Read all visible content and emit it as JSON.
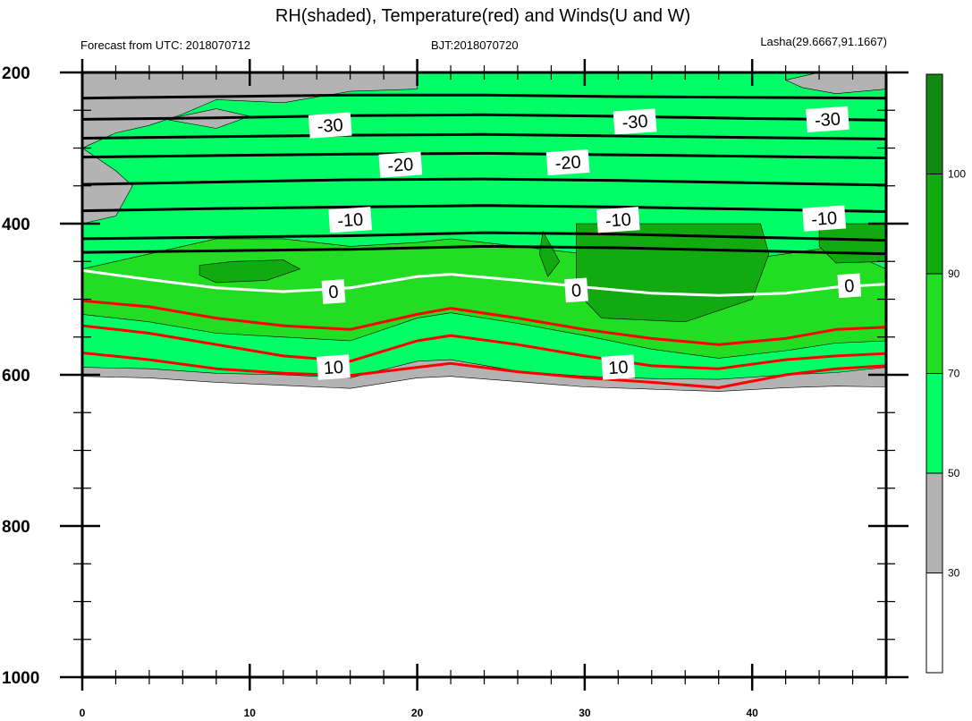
{
  "title": "RH(shaded), Temperature(red) and Winds(U and W)",
  "subtitle_left": "Forecast from UTC: 2018070712",
  "subtitle_center": "BJT:2018070720",
  "subtitle_right": "Lasha(29.6667,91.1667)",
  "colors": {
    "rh_below_30": "#ffffff",
    "rh_30_50": "#b3b3b3",
    "rh_50_70": "#00ff66",
    "rh_70_90": "#22dd22",
    "rh_90_100": "#11aa11",
    "rh_above_100": "#118811",
    "isotherm_cold": "#000000",
    "isotherm_zero": "#ffffff",
    "isotherm_warm": "#ff0000"
  },
  "chart_data": {
    "type": "heatmap",
    "x_label": "",
    "y_label": "",
    "x_ticks": [
      "0",
      "10",
      "20",
      "30",
      "40"
    ],
    "y_ticks": [
      "200",
      "400",
      "600",
      "800",
      "1000"
    ],
    "xlim": [
      0,
      48
    ],
    "ylim": [
      200,
      1000
    ],
    "y_inverted": true,
    "colorbar": {
      "labels": [
        "30",
        "50",
        "70",
        "90",
        "100"
      ],
      "levels": [
        30,
        50,
        70,
        90,
        100
      ]
    },
    "ground_pressure": [
      [
        0,
        602
      ],
      [
        4,
        604
      ],
      [
        8,
        610
      ],
      [
        12,
        614
      ],
      [
        16,
        618
      ],
      [
        20,
        604
      ],
      [
        22,
        602
      ],
      [
        26,
        609
      ],
      [
        30,
        616
      ],
      [
        34,
        619
      ],
      [
        38,
        622
      ],
      [
        42,
        617
      ],
      [
        45,
        615
      ],
      [
        48,
        616
      ]
    ],
    "rh_bands": [
      {
        "name": "rh_30_50",
        "top": [
          [
            0,
            590
          ],
          [
            4,
            592
          ],
          [
            8,
            598
          ],
          [
            12,
            600
          ],
          [
            16,
            604
          ],
          [
            20,
            582
          ],
          [
            22,
            580
          ],
          [
            26,
            595
          ],
          [
            30,
            602
          ],
          [
            34,
            605
          ],
          [
            38,
            606
          ],
          [
            42,
            600
          ],
          [
            45,
            597
          ],
          [
            48,
            590
          ]
        ]
      },
      {
        "name": "rh_50_70",
        "top": [
          [
            0,
            520
          ],
          [
            4,
            530
          ],
          [
            8,
            545
          ],
          [
            12,
            550
          ],
          [
            16,
            555
          ],
          [
            20,
            525
          ],
          [
            22,
            518
          ],
          [
            26,
            532
          ],
          [
            30,
            548
          ],
          [
            34,
            566
          ],
          [
            38,
            578
          ],
          [
            42,
            568
          ],
          [
            45,
            558
          ],
          [
            48,
            555
          ]
        ]
      },
      {
        "name": "rh_70_90",
        "top": [
          [
            0,
            460
          ],
          [
            4,
            440
          ],
          [
            8,
            420
          ],
          [
            12,
            420
          ],
          [
            16,
            430
          ],
          [
            20,
            425
          ],
          [
            22,
            420
          ],
          [
            26,
            430
          ],
          [
            30,
            440
          ],
          [
            34,
            450
          ],
          [
            38,
            452
          ],
          [
            42,
            440
          ],
          [
            45,
            430
          ],
          [
            48,
            460
          ]
        ]
      }
    ],
    "isotherms": [
      {
        "level": -30,
        "points": [
          [
            0,
            234
          ],
          [
            8,
            232
          ],
          [
            16,
            230
          ],
          [
            24,
            230
          ],
          [
            32,
            232
          ],
          [
            40,
            233
          ],
          [
            48,
            234
          ]
        ],
        "label_at": [
          14,
          270
        ]
      },
      {
        "level": -30,
        "points": [
          [
            0,
            262
          ],
          [
            8,
            260
          ],
          [
            16,
            257
          ],
          [
            24,
            256
          ],
          [
            32,
            258
          ],
          [
            40,
            261
          ],
          [
            48,
            263
          ]
        ],
        "label_at": null
      },
      {
        "level": -30,
        "points": [
          [
            0,
            287
          ],
          [
            8,
            285
          ],
          [
            16,
            283
          ],
          [
            24,
            282
          ],
          [
            32,
            284
          ],
          [
            40,
            286
          ],
          [
            48,
            288
          ]
        ],
        "label_at": null
      },
      {
        "level": -20,
        "points": [
          [
            0,
            312
          ],
          [
            8,
            310
          ],
          [
            16,
            308
          ],
          [
            24,
            307
          ],
          [
            32,
            309
          ],
          [
            40,
            311
          ],
          [
            48,
            313
          ]
        ],
        "label_at": [
          18.5,
          322
        ]
      },
      {
        "level": -20,
        "points": [
          [
            0,
            348
          ],
          [
            8,
            345
          ],
          [
            16,
            342
          ],
          [
            24,
            341
          ],
          [
            32,
            343
          ],
          [
            40,
            346
          ],
          [
            48,
            349
          ]
        ],
        "label_at": null
      },
      {
        "level": -10,
        "points": [
          [
            0,
            383
          ],
          [
            8,
            380
          ],
          [
            16,
            378
          ],
          [
            24,
            376
          ],
          [
            32,
            378
          ],
          [
            40,
            381
          ],
          [
            48,
            384
          ]
        ],
        "label_at": [
          16,
          395
        ]
      },
      {
        "level": -10,
        "points": [
          [
            0,
            420
          ],
          [
            8,
            418
          ],
          [
            16,
            416
          ],
          [
            24,
            412
          ],
          [
            32,
            414
          ],
          [
            40,
            418
          ],
          [
            48,
            422
          ]
        ],
        "label_at": null
      },
      {
        "level": -10,
        "points": [
          [
            0,
            438
          ],
          [
            8,
            436
          ],
          [
            16,
            434
          ],
          [
            24,
            430
          ],
          [
            32,
            432
          ],
          [
            40,
            436
          ],
          [
            48,
            440
          ]
        ],
        "label_at": null
      },
      {
        "level": 0,
        "points": [
          [
            0,
            462
          ],
          [
            4,
            474
          ],
          [
            8,
            485
          ],
          [
            12,
            490
          ],
          [
            16,
            485
          ],
          [
            20,
            470
          ],
          [
            22,
            467
          ],
          [
            26,
            475
          ],
          [
            30,
            484
          ],
          [
            34,
            492
          ],
          [
            38,
            495
          ],
          [
            42,
            492
          ],
          [
            45,
            484
          ],
          [
            48,
            480
          ]
        ],
        "label_at": [
          15,
          490
        ]
      },
      {
        "level": 10,
        "points": [
          [
            0,
            502
          ],
          [
            4,
            510
          ],
          [
            8,
            525
          ],
          [
            12,
            535
          ],
          [
            16,
            540
          ],
          [
            20,
            520
          ],
          [
            22,
            512
          ],
          [
            26,
            525
          ],
          [
            30,
            540
          ],
          [
            34,
            552
          ],
          [
            38,
            560
          ],
          [
            42,
            552
          ],
          [
            45,
            540
          ],
          [
            48,
            537
          ]
        ],
        "label_at": null
      },
      {
        "level": 10,
        "points": [
          [
            0,
            535
          ],
          [
            4,
            545
          ],
          [
            8,
            560
          ],
          [
            12,
            575
          ],
          [
            16,
            582
          ],
          [
            20,
            555
          ],
          [
            22,
            548
          ],
          [
            26,
            560
          ],
          [
            30,
            575
          ],
          [
            34,
            588
          ],
          [
            38,
            592
          ],
          [
            42,
            580
          ],
          [
            45,
            575
          ],
          [
            48,
            572
          ]
        ],
        "label_at": [
          15,
          590
        ]
      },
      {
        "level": 10,
        "points": [
          [
            0,
            571
          ],
          [
            4,
            580
          ],
          [
            8,
            592
          ],
          [
            12,
            598
          ],
          [
            16,
            601
          ],
          [
            20,
            590
          ],
          [
            22,
            585
          ],
          [
            26,
            596
          ],
          [
            30,
            604
          ],
          [
            34,
            610
          ],
          [
            38,
            617
          ],
          [
            42,
            600
          ],
          [
            45,
            592
          ],
          [
            48,
            588
          ]
        ],
        "label_at": null
      }
    ],
    "contour_labels": [
      {
        "text": "-30",
        "x": 14.8,
        "y": 270
      },
      {
        "text": "-30",
        "x": 33.0,
        "y": 265
      },
      {
        "text": "-30",
        "x": 44.5,
        "y": 262
      },
      {
        "text": "-20",
        "x": 19.0,
        "y": 322
      },
      {
        "text": "-20",
        "x": 29.0,
        "y": 319
      },
      {
        "text": "-10",
        "x": 16.0,
        "y": 395
      },
      {
        "text": "-10",
        "x": 32.0,
        "y": 395
      },
      {
        "text": "-10",
        "x": 44.3,
        "y": 393
      },
      {
        "text": "0",
        "x": 15.0,
        "y": 490
      },
      {
        "text": "0",
        "x": 29.5,
        "y": 488
      },
      {
        "text": "0",
        "x": 45.8,
        "y": 482
      },
      {
        "text": "10",
        "x": 15.0,
        "y": 590
      },
      {
        "text": "10",
        "x": 32.0,
        "y": 590
      }
    ]
  }
}
